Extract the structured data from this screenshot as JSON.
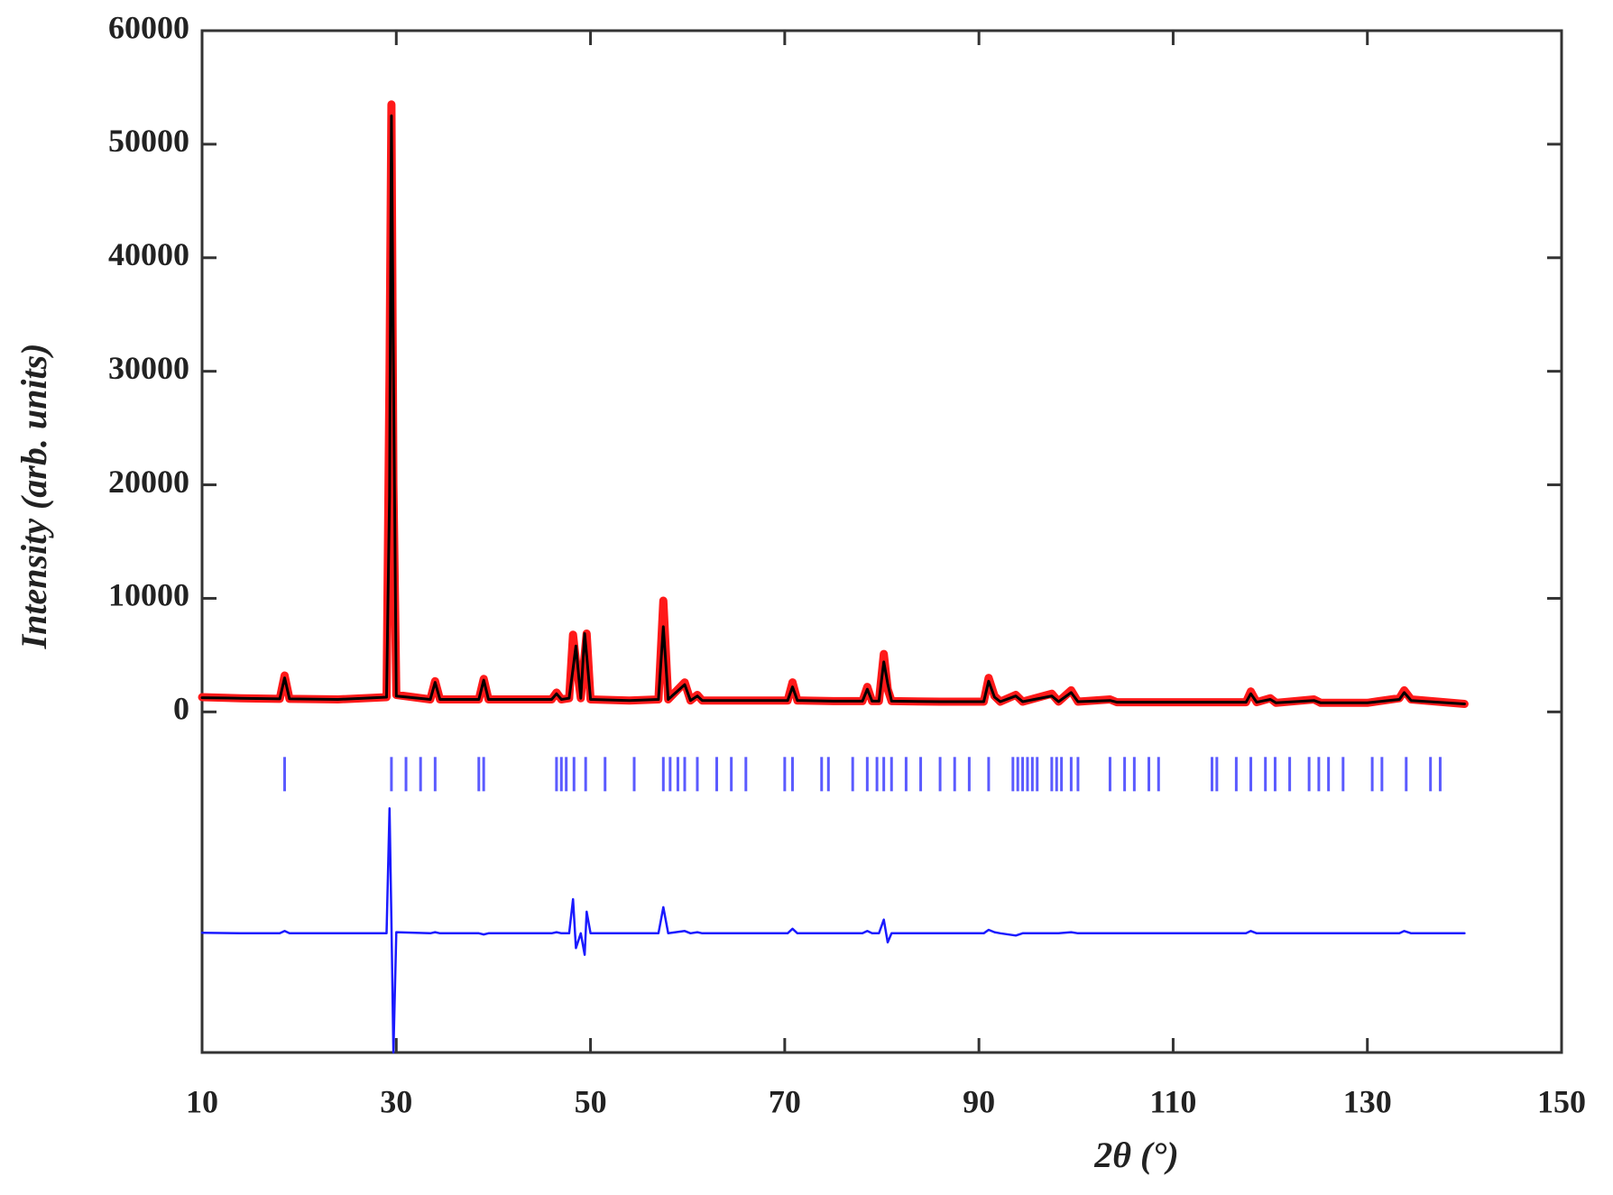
{
  "chart_data": {
    "type": "line",
    "xlabel": "2θ (°)",
    "ylabel": "Intensity (arb. units)",
    "xlim": [
      10,
      150
    ],
    "xticks": [
      10,
      30,
      50,
      70,
      90,
      110,
      130,
      150
    ],
    "ylim": [
      -30000,
      60000
    ],
    "yticks": [
      0,
      10000,
      20000,
      30000,
      40000,
      50000,
      60000
    ],
    "x": [
      10,
      14,
      18,
      18.5,
      19,
      24,
      29,
      29.3,
      29.5,
      29.7,
      30,
      33.5,
      34,
      34.5,
      38.5,
      39,
      39.5,
      46,
      46.5,
      47,
      47.8,
      48.2,
      48.5,
      49,
      49.4,
      49.6,
      50,
      54,
      57,
      57.5,
      58,
      59.7,
      60.3,
      61,
      61.5,
      66,
      70.3,
      70.8,
      71.3,
      75,
      78,
      78.5,
      79,
      79.7,
      80.2,
      80.6,
      81,
      86,
      90.5,
      91,
      91.6,
      92.2,
      93.8,
      94.5,
      97.5,
      98.2,
      99.5,
      100.2,
      103.5,
      104.2,
      110,
      117.5,
      118,
      118.6,
      120,
      120.6,
      124.5,
      125.2,
      130,
      133.3,
      133.8,
      134.5,
      140
    ],
    "series": [
      {
        "color": "#ff1a1a",
        "values": [
          1300,
          1200,
          1150,
          3200,
          1150,
          1100,
          1300,
          30000,
          53500,
          20000,
          1500,
          1100,
          2700,
          1100,
          1100,
          2900,
          1100,
          1100,
          1700,
          1100,
          1200,
          6800,
          4500,
          1200,
          5000,
          6900,
          1100,
          1000,
          1100,
          9800,
          1100,
          2600,
          1000,
          1500,
          1000,
          1000,
          1000,
          2600,
          1000,
          950,
          950,
          2200,
          950,
          950,
          5100,
          2000,
          950,
          900,
          900,
          3000,
          1400,
          900,
          1500,
          900,
          1600,
          900,
          1900,
          900,
          1100,
          850,
          850,
          850,
          1800,
          850,
          1200,
          800,
          1100,
          800,
          800,
          1200,
          1900,
          1100,
          700
        ]
      },
      {
        "color": "#000000",
        "values": [
          1250,
          1200,
          1150,
          3000,
          1150,
          1100,
          1300,
          19000,
          52500,
          30500,
          1400,
          1100,
          2600,
          1100,
          1100,
          2800,
          1100,
          1100,
          1600,
          1100,
          1200,
          3800,
          5800,
          1200,
          6900,
          5000,
          1100,
          1000,
          1100,
          7500,
          1100,
          2400,
          1000,
          1400,
          1000,
          1000,
          1000,
          2200,
          1000,
          950,
          950,
          2000,
          950,
          950,
          4400,
          2500,
          950,
          900,
          900,
          2700,
          1300,
          900,
          1400,
          900,
          1400,
          900,
          1700,
          900,
          1000,
          850,
          850,
          850,
          1600,
          850,
          1100,
          800,
          1000,
          800,
          800,
          1100,
          1700,
          1000,
          700
        ]
      },
      {
        "color": "#1a1aff",
        "values": [
          -19450,
          -19500,
          -19500,
          -19300,
          -19500,
          -19500,
          -19500,
          -8500,
          -18500,
          -30000,
          -19400,
          -19500,
          -19400,
          -19500,
          -19500,
          -19600,
          -19500,
          -19500,
          -19400,
          -19500,
          -19500,
          -16500,
          -20800,
          -19500,
          -21400,
          -17600,
          -19500,
          -19500,
          -19500,
          -17200,
          -19500,
          -19300,
          -19500,
          -19400,
          -19500,
          -19500,
          -19500,
          -19100,
          -19500,
          -19500,
          -19500,
          -19300,
          -19500,
          -19500,
          -18300,
          -20300,
          -19500,
          -19500,
          -19500,
          -19200,
          -19400,
          -19500,
          -19700,
          -19500,
          -19500,
          -19500,
          -19400,
          -19500,
          -19500,
          -19500,
          -19500,
          -19500,
          -19300,
          -19500,
          -19500,
          -19500,
          -19500,
          -19500,
          -19500,
          -19500,
          -19300,
          -19500,
          -19500
        ]
      }
    ],
    "reflections": {
      "color": "#3333ff",
      "x": [
        18.5,
        29.5,
        31,
        32.5,
        34,
        38.5,
        39,
        46.5,
        47,
        47.5,
        48.3,
        49.5,
        51.5,
        54.5,
        57.5,
        58.2,
        59,
        59.7,
        61,
        63,
        64.5,
        66,
        70,
        70.8,
        73.8,
        74.5,
        77,
        78.5,
        79.5,
        80.2,
        81,
        82.5,
        84,
        86,
        87.5,
        89,
        91,
        93.5,
        94,
        94.5,
        95,
        95.5,
        96,
        97.5,
        98,
        98.5,
        99.5,
        100.2,
        103.5,
        105,
        106,
        107.5,
        108.5,
        114,
        114.5,
        116.5,
        118,
        119.5,
        120.5,
        122,
        124,
        125,
        126,
        127.5,
        130.5,
        131.5,
        134,
        136.5,
        137.5
      ]
    }
  }
}
